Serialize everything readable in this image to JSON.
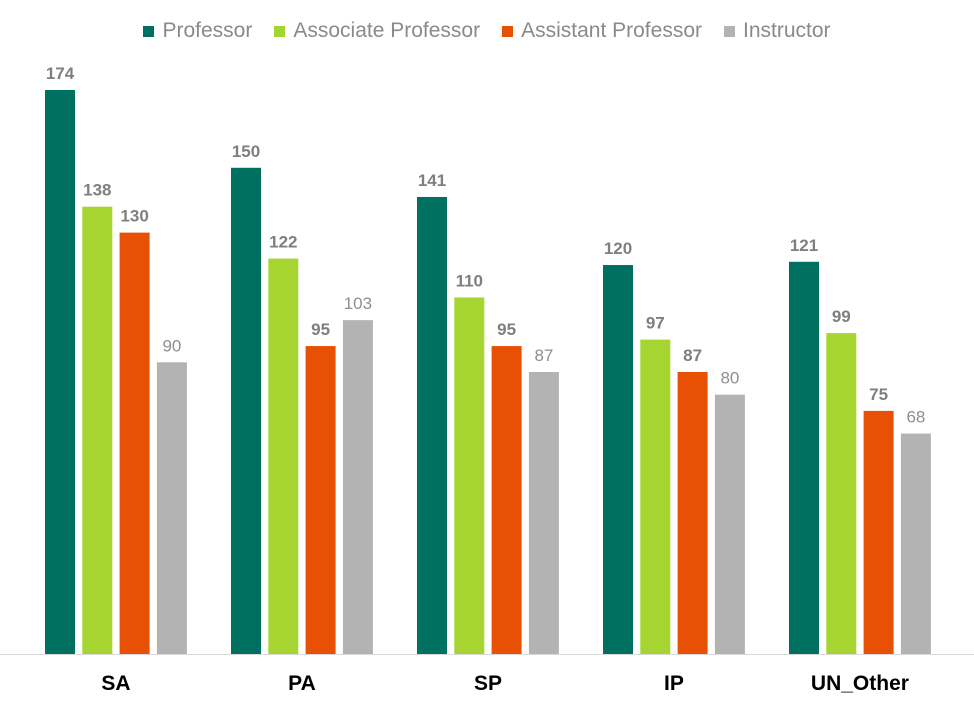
{
  "chart_data": {
    "type": "bar",
    "categories": [
      "SA",
      "PA",
      "SP",
      "IP",
      "UN_Other"
    ],
    "series": [
      {
        "name": "Professor",
        "color": "#007060",
        "values": [
          174,
          150,
          141,
          120,
          121
        ]
      },
      {
        "name": "Associate Professor",
        "color": "#a6d531",
        "values": [
          138,
          122,
          110,
          97,
          99
        ]
      },
      {
        "name": "Assistant Professor",
        "color": "#e85104",
        "values": [
          130,
          95,
          95,
          87,
          75
        ]
      },
      {
        "name": "Instructor",
        "color": "#b3b3b3",
        "values": [
          90,
          103,
          87,
          80,
          68
        ]
      }
    ],
    "ylim": [
      0,
      174
    ],
    "grid": false,
    "legend_position": "top-center",
    "title": "",
    "xlabel": "",
    "ylabel": ""
  }
}
